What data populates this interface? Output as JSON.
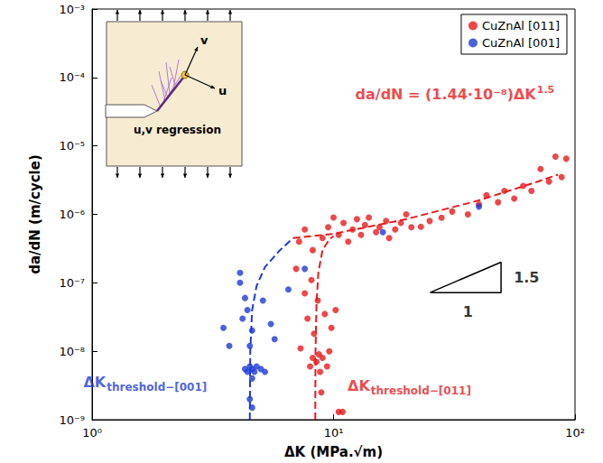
{
  "chart_data": {
    "type": "scatter",
    "log": true,
    "grid": false,
    "legend": "upper right",
    "x_label": "ΔK (MPa.√m)",
    "y_label": "da/dN (m/cycle)",
    "xlim": [
      1,
      100
    ],
    "ylim": [
      1e-09,
      0.001
    ],
    "xticks": [
      {
        "value": 1,
        "label": "10⁰"
      },
      {
        "value": 10,
        "label": "10¹"
      },
      {
        "value": 100,
        "label": "10²"
      }
    ],
    "yticks": [
      {
        "value": 1e-09,
        "label": "10⁻⁹"
      },
      {
        "value": 1e-08,
        "label": "10⁻⁸"
      },
      {
        "value": 1e-07,
        "label": "10⁻⁷"
      },
      {
        "value": 1e-06,
        "label": "10⁻⁶"
      },
      {
        "value": 1e-05,
        "label": "10⁻⁵"
      },
      {
        "value": 0.0001,
        "label": "10⁻⁴"
      },
      {
        "value": 0.001,
        "label": "10⁻³"
      }
    ],
    "series": [
      {
        "name": "CuZnAl [011]",
        "type": "scatter",
        "color": "#e8191c",
        "marker": "circle",
        "x": [
          7.3,
          7.6,
          7.8,
          8.0,
          8.2,
          8.3,
          8.5,
          8.7,
          8.8,
          9.0,
          9.2,
          9.4,
          9.6,
          9.8,
          10.2,
          8.1,
          8.9,
          10.5,
          10.9,
          8.6,
          7.0,
          7.2,
          7.6,
          8.2,
          9.0,
          9.5,
          10.0,
          10.5,
          11.0,
          11.5,
          12.0,
          12.5,
          13.0,
          13.5,
          14.0,
          15.0,
          15.5,
          16.5,
          17.0,
          18.0,
          19.0,
          20.0,
          21.0,
          23.0,
          25.0,
          28.0,
          31.0,
          36.0,
          40.0,
          43.0,
          48.0,
          51.0,
          56.0,
          61.0,
          66.0,
          72.0,
          78.0,
          83.0,
          92.0,
          88.0
        ],
        "values": [
          1.1e-08,
          7e-08,
          3e-08,
          6e-09,
          8e-09,
          1.8e-08,
          7e-09,
          9e-09,
          5e-09,
          8e-09,
          3.5e-08,
          6e-09,
          1e-08,
          2.2e-08,
          4e-08,
          1.1e-07,
          2.5e-09,
          1.3e-09,
          1.3e-09,
          5.5e-08,
          1.6e-07,
          4e-07,
          6e-07,
          3e-07,
          4.5e-07,
          6.5e-07,
          9e-07,
          5e-07,
          7.5e-07,
          4e-07,
          6e-07,
          8.5e-07,
          5e-07,
          7e-07,
          9e-07,
          5.5e-07,
          6.5e-07,
          8e-07,
          4.5e-07,
          6e-07,
          7.5e-07,
          1e-06,
          6.5e-07,
          6.6e-07,
          8e-07,
          8.9e-07,
          1.1e-06,
          1e-06,
          1.4e-06,
          1.9e-06,
          1.5e-06,
          2.2e-06,
          1.7e-06,
          2.6e-06,
          2.2e-06,
          4.6e-06,
          3e-06,
          7e-06,
          6.5e-06,
          3.5e-06
        ]
      },
      {
        "name": "CuZnAl [001]",
        "type": "scatter",
        "color": "#1c3ad4",
        "marker": "circle",
        "x": [
          3.5,
          3.7,
          4.1,
          4.1,
          4.2,
          4.3,
          4.4,
          4.5,
          4.6,
          5.1,
          5.5,
          5.7,
          6.5,
          7.6,
          4.3,
          4.4,
          4.5,
          4.6,
          4.7,
          4.8,
          5.0,
          5.2,
          4.6,
          4.5,
          4.6,
          16.0,
          40.0
        ],
        "values": [
          2.2e-08,
          1.2e-08,
          1.4e-07,
          1e-07,
          3e-08,
          6e-08,
          4e-08,
          1.2e-08,
          2e-08,
          5.5e-08,
          2.5e-08,
          1.5e-08,
          8e-08,
          1.6e-07,
          5.5e-09,
          5e-09,
          6e-09,
          5.5e-09,
          5e-09,
          6e-09,
          5.5e-09,
          5e-09,
          4e-09,
          2e-09,
          1.5e-09,
          5.5e-07,
          1.3e-06
        ]
      },
      {
        "type": "line",
        "color": "#e8191c",
        "line_style": "dashed",
        "x": [
          6.8,
          10,
          20,
          40,
          70,
          85
        ],
        "values": [
          4.5e-07,
          5.2e-07,
          8.5e-07,
          1.6e-06,
          3e-06,
          3.8e-06
        ]
      },
      {
        "type": "line",
        "color": "#e8191c",
        "line_style": "dashed",
        "x": [
          8.4,
          8.42,
          8.5,
          8.65,
          9.0,
          9.6,
          10.0
        ],
        "values": [
          1e-09,
          1e-08,
          5e-08,
          1.4e-07,
          3e-07,
          4.3e-07,
          4.8e-07
        ]
      },
      {
        "type": "line",
        "color": "#1c3ad4",
        "line_style": "dashed",
        "x": [
          4.5,
          4.52,
          4.6,
          4.8,
          5.2,
          6.0,
          6.8
        ],
        "values": [
          1e-09,
          1e-08,
          4e-08,
          9e-08,
          1.7e-07,
          3e-07,
          4.5e-07
        ]
      }
    ],
    "slope_triangle": {
      "color": "#000000",
      "x": [
        25.1,
        49.4,
        49.4
      ],
      "values": [
        7.2e-08,
        7.2e-08,
        2e-07
      ]
    },
    "annotations": [
      {
        "text": "da/dN = (1.44·10⁻⁸)ΔK",
        "superscript": "1.5",
        "x": 31.8,
        "y": 5.6e-05,
        "color": "#e8191c"
      },
      {
        "text": "1.5",
        "x": 63,
        "y": 1.2e-07,
        "color": "#000000"
      },
      {
        "text": "1",
        "x": 36,
        "y": 3.8e-08,
        "color": "#000000"
      },
      {
        "text": "ΔK",
        "subscript": "threshold−[001]",
        "x": 1.66,
        "y": 3.5e-09,
        "color": "#1c3ad4"
      },
      {
        "text": "ΔK",
        "subscript": "threshold−[011]",
        "x": 20.6,
        "y": 3.1e-09,
        "color": "#e8191c"
      }
    ],
    "inset": {
      "labels": {
        "regression": "u,v regression",
        "u": "u",
        "v": "v"
      }
    }
  }
}
